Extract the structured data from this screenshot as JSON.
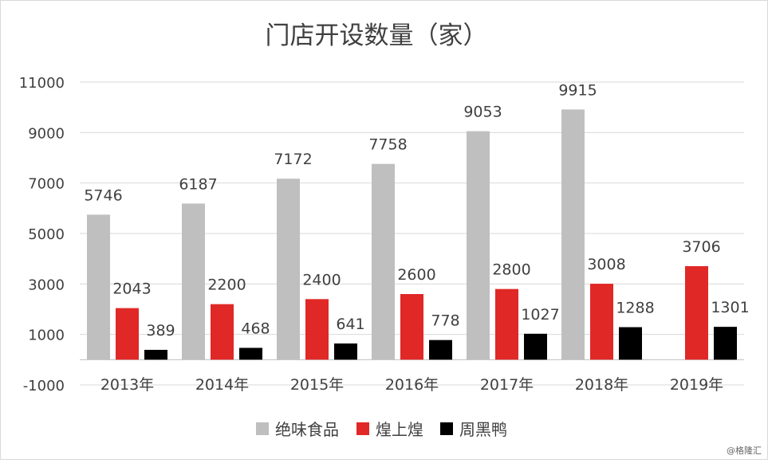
{
  "chart_data": {
    "type": "bar",
    "title": "门店开设数量（家）",
    "categories": [
      "2013年",
      "2014年",
      "2015年",
      "2016年",
      "2017年",
      "2018年",
      "2019年"
    ],
    "series": [
      {
        "name": "绝味食品",
        "color": "#bfbfbf",
        "values": [
          5746,
          6187,
          7172,
          7758,
          9053,
          9915,
          null
        ]
      },
      {
        "name": "煌上煌",
        "color": "#e02826",
        "values": [
          2043,
          2200,
          2400,
          2600,
          2800,
          3008,
          3706
        ]
      },
      {
        "name": "周黑鸭",
        "color": "#000000",
        "values": [
          389,
          468,
          641,
          778,
          1027,
          1288,
          1301
        ]
      }
    ],
    "ylim": [
      -1000,
      11000
    ],
    "yticks": [
      -1000,
      1000,
      3000,
      5000,
      7000,
      9000,
      11000
    ],
    "grid": true,
    "legend": "bottom",
    "xlabel": "",
    "ylabel": ""
  },
  "source": "@格隆汇"
}
